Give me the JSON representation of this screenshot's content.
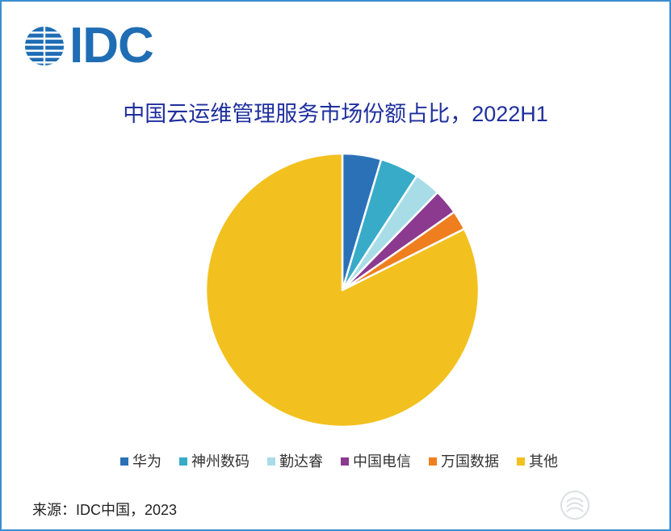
{
  "logo": {
    "text": "IDC",
    "color": "#1f6db4",
    "icon": "idc-globe-icon"
  },
  "chart_data": {
    "type": "pie",
    "title": "中国云运维管理服务市场份额占比，2022H1",
    "categories": [
      "华为",
      "神州数码",
      "勤达睿",
      "中国电信",
      "万国数据",
      "其他"
    ],
    "values": [
      4.6,
      4.6,
      3.1,
      3.0,
      2.3,
      82.4
    ],
    "colors": [
      "#2a71b8",
      "#37abc8",
      "#a8dde8",
      "#8b3a8f",
      "#ef7f1e",
      "#f2c11f"
    ],
    "legend": {
      "position": "bottom"
    }
  },
  "source": "来源：IDC中国，2023",
  "colors": {
    "frame": "#3a8fd0",
    "title": "#1f2f9e"
  }
}
